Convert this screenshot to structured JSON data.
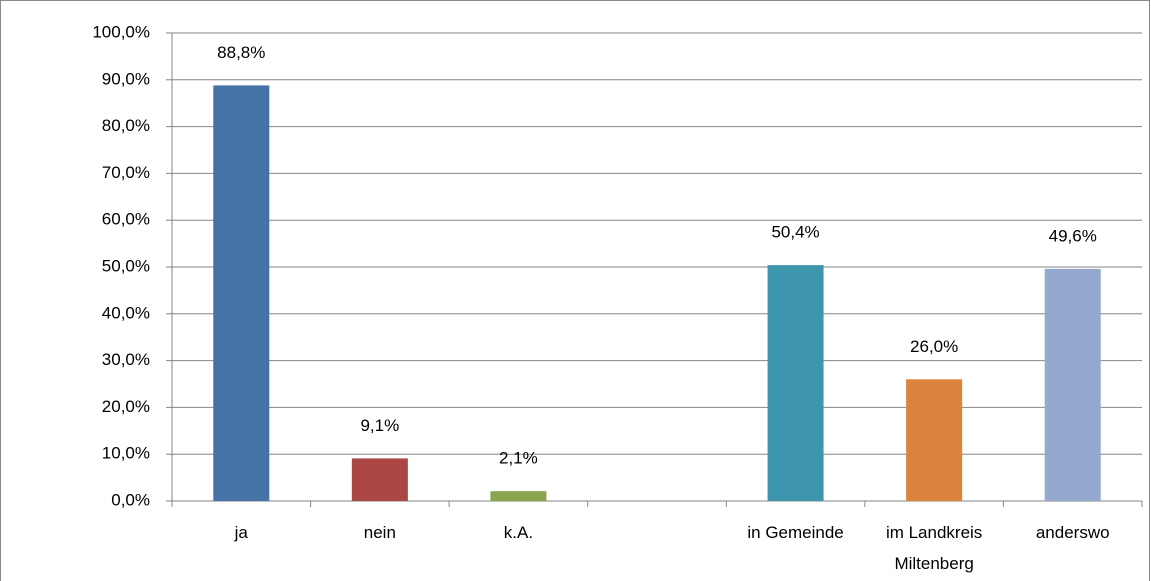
{
  "chart_data": {
    "type": "bar",
    "categories": [
      "ja",
      "nein",
      "k.A.",
      null,
      "in Gemeinde",
      "im Landkreis Miltenberg",
      "anderswo"
    ],
    "values": [
      88.8,
      9.1,
      2.1,
      null,
      50.4,
      26.0,
      49.6
    ],
    "value_labels": [
      "88,8%",
      "9,1%",
      "2,1%",
      null,
      "50,4%",
      "26,0%",
      "49,6%"
    ],
    "colors": [
      "#4572a7",
      "#aa4643",
      "#89a54e",
      null,
      "#3d96ae",
      "#db843d",
      "#93a9cf"
    ],
    "ylim": [
      0,
      100
    ],
    "yticks": [
      {
        "value": 0,
        "label": "0,0%"
      },
      {
        "value": 10,
        "label": "10,0%"
      },
      {
        "value": 20,
        "label": "20,0%"
      },
      {
        "value": 30,
        "label": "30,0%"
      },
      {
        "value": 40,
        "label": "40,0%"
      },
      {
        "value": 50,
        "label": "50,0%"
      },
      {
        "value": 60,
        "label": "60,0%"
      },
      {
        "value": 70,
        "label": "70,0%"
      },
      {
        "value": 80,
        "label": "80,0%"
      },
      {
        "value": 90,
        "label": "90,0%"
      },
      {
        "value": 100,
        "label": "100,0%"
      }
    ],
    "grid": true
  }
}
